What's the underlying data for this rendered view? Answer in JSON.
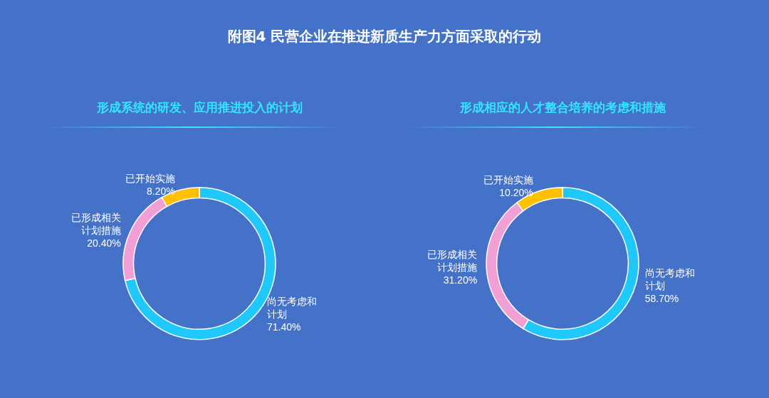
{
  "chart_data": [
    {
      "type": "donut",
      "title": "附图4  民营企业在推进新质生产力方面采取的行动",
      "subtitle": "形成系统的研发、应用推进投入的计划",
      "categories": [
        "尚无考虑和计划",
        "已形成相关计划措施",
        "已开始实施"
      ],
      "values": [
        71.4,
        20.4,
        8.2
      ],
      "value_labels": [
        "71.40%",
        "20.40%",
        "8.20%"
      ],
      "colors": [
        "#1ec8fa",
        "#f29fd6",
        "#ffc000"
      ],
      "legend": false
    },
    {
      "type": "donut",
      "subtitle": "形成相应的人才整合培养的考虑和措施",
      "categories": [
        "尚无考虑和计划",
        "已形成相关计划措施",
        "已开始实施"
      ],
      "values": [
        58.7,
        31.2,
        10.2
      ],
      "value_labels": [
        "58.70%",
        "31.20%",
        "10.20%"
      ],
      "colors": [
        "#1ec8fa",
        "#f29fd6",
        "#ffc000"
      ],
      "legend": false
    }
  ]
}
